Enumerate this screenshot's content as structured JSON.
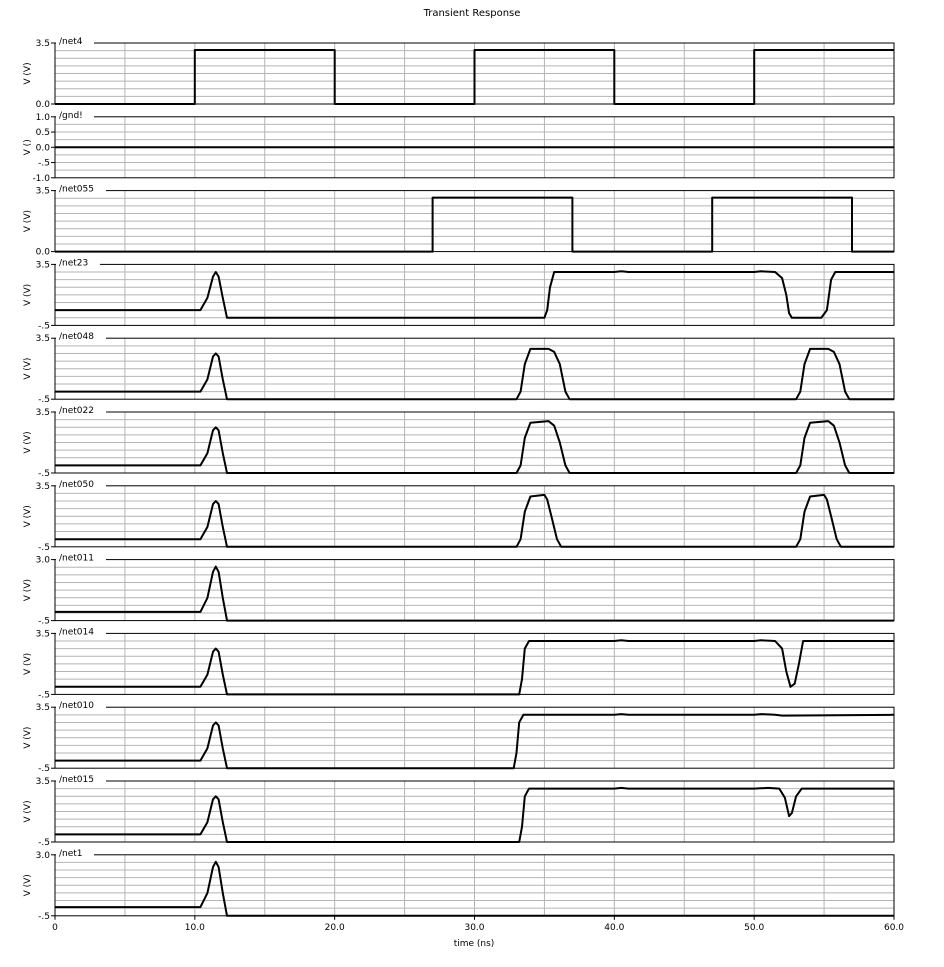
{
  "chart_data": {
    "type": "line",
    "title": "Transient Response",
    "xlabel": "time (ns)",
    "xlim": [
      0,
      60
    ],
    "x_ticks": [
      "0",
      "10.0",
      "20.0",
      "30.0",
      "40.0",
      "50.0",
      "60.0"
    ],
    "grid": true,
    "colors": {
      "trace": "#000000",
      "grid": "#b4b4b4",
      "axis": "#000000"
    },
    "panels": [
      {
        "name": "/net4",
        "ylabel": "V (V)",
        "ylim": [
          0,
          3.5
        ],
        "ticks": [
          "3.5",
          "0.0"
        ],
        "points": [
          [
            0,
            0
          ],
          [
            10,
            0
          ],
          [
            10,
            3.1
          ],
          [
            20,
            3.1
          ],
          [
            20,
            0
          ],
          [
            30,
            0
          ],
          [
            30,
            3.1
          ],
          [
            40,
            3.1
          ],
          [
            40,
            0
          ],
          [
            50,
            0
          ],
          [
            50,
            3.1
          ],
          [
            60,
            3.1
          ]
        ]
      },
      {
        "name": "/gnd!",
        "ylabel": "V ()",
        "ylim": [
          -1,
          1
        ],
        "ticks": [
          "1.0",
          "0.5",
          "0.0",
          "-.5",
          "-1.0"
        ],
        "points": [
          [
            0,
            0
          ],
          [
            60,
            0
          ]
        ]
      },
      {
        "name": "/net055",
        "ylabel": "V (V)",
        "ylim": [
          0,
          3.5
        ],
        "ticks": [
          "3.5",
          "0.0"
        ],
        "points": [
          [
            0,
            0
          ],
          [
            27,
            0
          ],
          [
            27,
            3.1
          ],
          [
            37,
            3.1
          ],
          [
            37,
            0
          ],
          [
            47,
            0
          ],
          [
            47,
            3.1
          ],
          [
            57,
            3.1
          ],
          [
            57,
            0
          ],
          [
            60,
            0
          ]
        ]
      },
      {
        "name": "/net23",
        "ylabel": "V (V)",
        "ylim": [
          -0.5,
          3.5
        ],
        "ticks": [
          "3.5",
          "-.5"
        ],
        "points": [
          [
            0,
            0.5
          ],
          [
            10.4,
            0.5
          ],
          [
            10.9,
            1.3
          ],
          [
            11.3,
            2.7
          ],
          [
            11.5,
            3.0
          ],
          [
            11.7,
            2.7
          ],
          [
            12.0,
            1.3
          ],
          [
            12.3,
            0
          ],
          [
            35,
            0
          ],
          [
            35.2,
            0.5
          ],
          [
            35.4,
            2
          ],
          [
            35.7,
            3.0
          ],
          [
            40,
            3.0
          ],
          [
            40.5,
            3.05
          ],
          [
            41,
            3.0
          ],
          [
            50,
            3.0
          ],
          [
            50.5,
            3.05
          ],
          [
            51.5,
            3.0
          ],
          [
            52,
            2.6
          ],
          [
            52.3,
            1.5
          ],
          [
            52.5,
            0.3
          ],
          [
            52.7,
            0
          ],
          [
            54.8,
            0
          ],
          [
            55.2,
            0.5
          ],
          [
            55.5,
            2.5
          ],
          [
            55.8,
            3.0
          ],
          [
            60,
            3.0
          ]
        ]
      },
      {
        "name": "/net048",
        "ylabel": "V (V)",
        "ylim": [
          -0.5,
          3.5
        ],
        "ticks": [
          "3.5",
          "-.5"
        ],
        "points": [
          [
            0,
            0
          ],
          [
            10.4,
            0
          ],
          [
            10.9,
            0.8
          ],
          [
            11.3,
            2.3
          ],
          [
            11.5,
            2.5
          ],
          [
            11.7,
            2.3
          ],
          [
            12.0,
            0.8
          ],
          [
            12.3,
            -0.5
          ],
          [
            33,
            -0.5
          ],
          [
            33.3,
            0
          ],
          [
            33.6,
            1.8
          ],
          [
            34,
            2.8
          ],
          [
            35.3,
            2.8
          ],
          [
            35.7,
            2.6
          ],
          [
            36.1,
            1.8
          ],
          [
            36.5,
            0
          ],
          [
            36.8,
            -0.5
          ],
          [
            53,
            -0.5
          ],
          [
            53.3,
            0
          ],
          [
            53.6,
            1.8
          ],
          [
            54,
            2.8
          ],
          [
            55.3,
            2.8
          ],
          [
            55.7,
            2.6
          ],
          [
            56.1,
            1.8
          ],
          [
            56.5,
            0
          ],
          [
            56.8,
            -0.5
          ],
          [
            60,
            -0.5
          ]
        ]
      },
      {
        "name": "/net022",
        "ylabel": "V (V)",
        "ylim": [
          -0.5,
          3.5
        ],
        "ticks": [
          "3.5",
          "-.5"
        ],
        "points": [
          [
            0,
            0
          ],
          [
            10.4,
            0
          ],
          [
            10.9,
            0.8
          ],
          [
            11.3,
            2.3
          ],
          [
            11.5,
            2.5
          ],
          [
            11.7,
            2.3
          ],
          [
            12.0,
            0.8
          ],
          [
            12.3,
            -0.5
          ],
          [
            33,
            -0.5
          ],
          [
            33.3,
            0
          ],
          [
            33.6,
            1.8
          ],
          [
            34,
            2.8
          ],
          [
            35.3,
            2.9
          ],
          [
            35.7,
            2.6
          ],
          [
            36.1,
            1.5
          ],
          [
            36.5,
            0
          ],
          [
            36.8,
            -0.5
          ],
          [
            53,
            -0.5
          ],
          [
            53.3,
            0
          ],
          [
            53.6,
            1.8
          ],
          [
            54,
            2.8
          ],
          [
            55.3,
            2.9
          ],
          [
            55.7,
            2.6
          ],
          [
            56.1,
            1.5
          ],
          [
            56.5,
            0
          ],
          [
            56.8,
            -0.5
          ],
          [
            60,
            -0.5
          ]
        ]
      },
      {
        "name": "/net050",
        "ylabel": "V (V)",
        "ylim": [
          -0.5,
          3.5
        ],
        "ticks": [
          "3.5",
          "-.5"
        ],
        "points": [
          [
            0,
            0
          ],
          [
            10.4,
            0
          ],
          [
            10.9,
            0.8
          ],
          [
            11.3,
            2.3
          ],
          [
            11.5,
            2.5
          ],
          [
            11.7,
            2.3
          ],
          [
            12.0,
            0.8
          ],
          [
            12.3,
            -0.5
          ],
          [
            33,
            -0.5
          ],
          [
            33.3,
            0
          ],
          [
            33.6,
            1.8
          ],
          [
            34,
            2.8
          ],
          [
            35,
            2.9
          ],
          [
            35.2,
            2.6
          ],
          [
            35.5,
            1.5
          ],
          [
            35.9,
            0
          ],
          [
            36.2,
            -0.5
          ],
          [
            53,
            -0.5
          ],
          [
            53.3,
            0
          ],
          [
            53.6,
            1.8
          ],
          [
            54,
            2.8
          ],
          [
            55,
            2.9
          ],
          [
            55.2,
            2.6
          ],
          [
            55.5,
            1.5
          ],
          [
            55.9,
            0
          ],
          [
            56.2,
            -0.5
          ],
          [
            60,
            -0.5
          ]
        ]
      },
      {
        "name": "/net011",
        "ylabel": "V (V)",
        "ylim": [
          -0.5,
          3.0
        ],
        "ticks": [
          "3.0",
          "-.5"
        ],
        "points": [
          [
            0,
            0
          ],
          [
            10.4,
            0
          ],
          [
            10.9,
            0.8
          ],
          [
            11.3,
            2.3
          ],
          [
            11.5,
            2.6
          ],
          [
            11.7,
            2.3
          ],
          [
            12.0,
            0.8
          ],
          [
            12.3,
            -0.5
          ],
          [
            60,
            -0.5
          ]
        ]
      },
      {
        "name": "/net014",
        "ylabel": "V (V)",
        "ylim": [
          -0.5,
          3.5
        ],
        "ticks": [
          "3.5",
          "-.5"
        ],
        "points": [
          [
            0,
            0
          ],
          [
            10.4,
            0
          ],
          [
            10.9,
            0.8
          ],
          [
            11.3,
            2.3
          ],
          [
            11.5,
            2.5
          ],
          [
            11.7,
            2.3
          ],
          [
            12.0,
            0.8
          ],
          [
            12.3,
            -0.5
          ],
          [
            33.2,
            -0.5
          ],
          [
            33.4,
            0.5
          ],
          [
            33.6,
            2.5
          ],
          [
            33.9,
            3.0
          ],
          [
            40,
            3.0
          ],
          [
            40.5,
            3.05
          ],
          [
            41,
            3.0
          ],
          [
            50,
            3.0
          ],
          [
            50.5,
            3.05
          ],
          [
            51.5,
            3.0
          ],
          [
            52,
            2.5
          ],
          [
            52.3,
            1
          ],
          [
            52.6,
            0
          ],
          [
            52.9,
            0.2
          ],
          [
            53.2,
            1.5
          ],
          [
            53.5,
            3.0
          ],
          [
            60,
            3.0
          ]
        ]
      },
      {
        "name": "/net010",
        "ylabel": "V (V)",
        "ylim": [
          -0.5,
          3.5
        ],
        "ticks": [
          "3.5",
          "-.5"
        ],
        "points": [
          [
            0,
            0
          ],
          [
            10.4,
            0
          ],
          [
            10.9,
            0.8
          ],
          [
            11.3,
            2.3
          ],
          [
            11.5,
            2.5
          ],
          [
            11.7,
            2.3
          ],
          [
            12.0,
            0.8
          ],
          [
            12.3,
            -0.5
          ],
          [
            32.8,
            -0.5
          ],
          [
            33,
            0.5
          ],
          [
            33.2,
            2.5
          ],
          [
            33.5,
            3.0
          ],
          [
            40,
            3.0
          ],
          [
            40.5,
            3.05
          ],
          [
            41,
            3.0
          ],
          [
            50,
            3.0
          ],
          [
            50.5,
            3.05
          ],
          [
            51.5,
            3.0
          ],
          [
            52,
            2.95
          ],
          [
            60,
            3.0
          ]
        ]
      },
      {
        "name": "/net015",
        "ylabel": "V (V)",
        "ylim": [
          -0.5,
          3.5
        ],
        "ticks": [
          "3.5",
          "-.5"
        ],
        "points": [
          [
            0,
            0
          ],
          [
            10.4,
            0
          ],
          [
            10.9,
            0.8
          ],
          [
            11.3,
            2.3
          ],
          [
            11.5,
            2.5
          ],
          [
            11.7,
            2.3
          ],
          [
            12.0,
            0.8
          ],
          [
            12.3,
            -0.5
          ],
          [
            33.2,
            -0.5
          ],
          [
            33.4,
            0.5
          ],
          [
            33.6,
            2.5
          ],
          [
            33.9,
            3.0
          ],
          [
            40,
            3.0
          ],
          [
            40.5,
            3.05
          ],
          [
            41,
            3.0
          ],
          [
            50,
            3.0
          ],
          [
            51,
            3.05
          ],
          [
            51.8,
            3.0
          ],
          [
            52.2,
            2.4
          ],
          [
            52.5,
            1.2
          ],
          [
            52.7,
            1.4
          ],
          [
            53,
            2.5
          ],
          [
            53.4,
            3.0
          ],
          [
            60,
            3.0
          ]
        ]
      },
      {
        "name": "/net1",
        "ylabel": "V (V)",
        "ylim": [
          -0.5,
          3.0
        ],
        "ticks": [
          "3.0",
          "-.5"
        ],
        "points": [
          [
            0,
            0
          ],
          [
            10.4,
            0
          ],
          [
            10.9,
            0.8
          ],
          [
            11.3,
            2.3
          ],
          [
            11.5,
            2.6
          ],
          [
            11.7,
            2.3
          ],
          [
            12.0,
            0.8
          ],
          [
            12.3,
            -0.5
          ],
          [
            60,
            -0.5
          ]
        ]
      }
    ]
  }
}
